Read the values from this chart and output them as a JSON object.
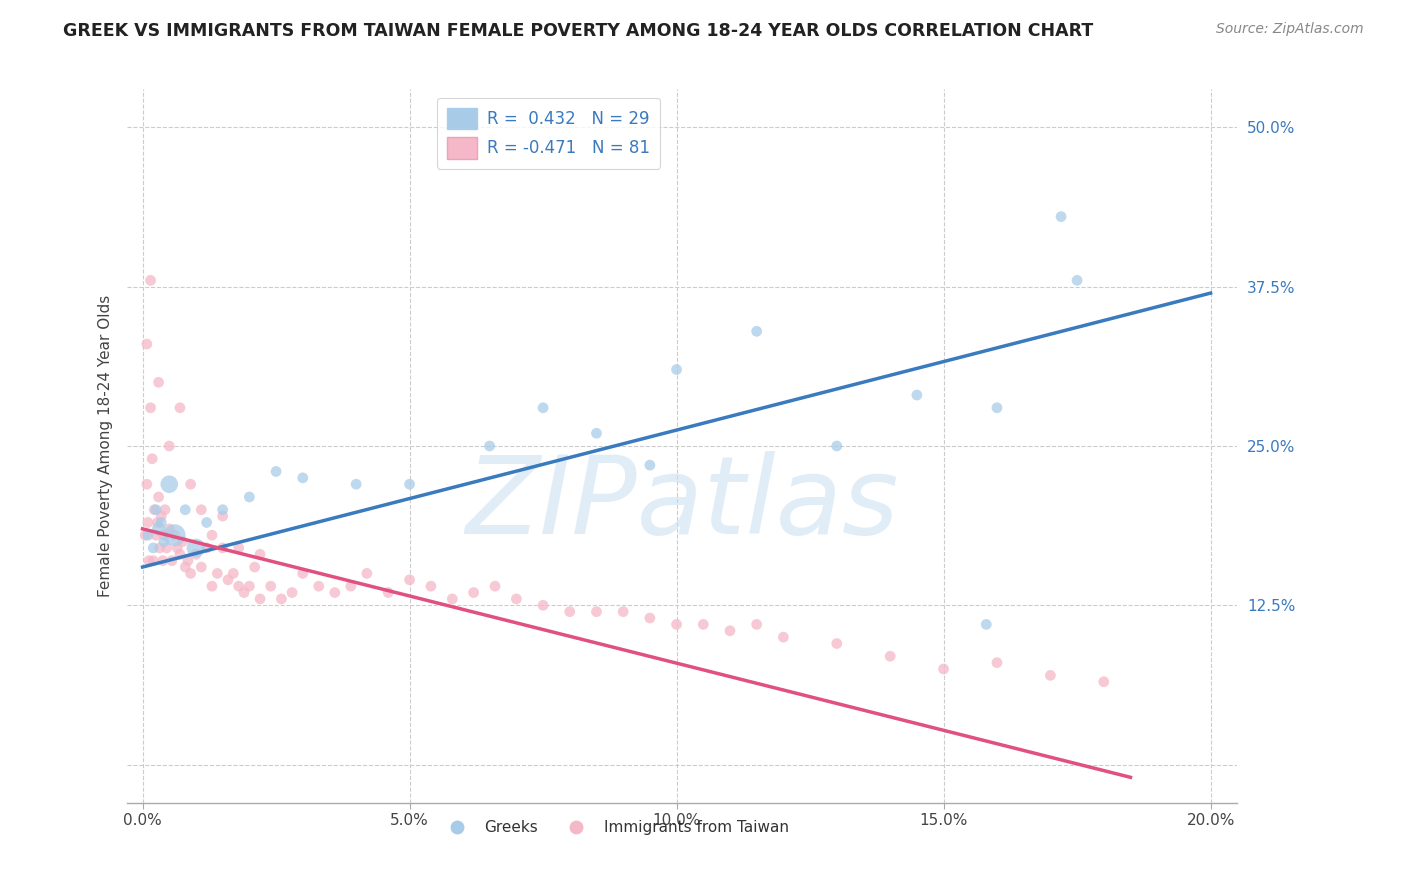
{
  "title": "GREEK VS IMMIGRANTS FROM TAIWAN FEMALE POVERTY AMONG 18-24 YEAR OLDS CORRELATION CHART",
  "source": "Source: ZipAtlas.com",
  "ylabel": "Female Poverty Among 18-24 Year Olds",
  "xlim": [
    -0.3,
    20.5
  ],
  "ylim": [
    -3.0,
    53.0
  ],
  "xticks": [
    0.0,
    5.0,
    10.0,
    15.0,
    20.0
  ],
  "xtick_labels": [
    "0.0%",
    "5.0%",
    "10.0%",
    "15.0%",
    "20.0%"
  ],
  "ytick_positions": [
    0.0,
    12.5,
    25.0,
    37.5,
    50.0
  ],
  "ytick_labels": [
    "",
    "12.5%",
    "25.0%",
    "37.5%",
    "50.0%"
  ],
  "legend_line1": "R =  0.432   N = 29",
  "legend_line2": "R = -0.471   N = 81",
  "blue_color": "#a8cce8",
  "pink_color": "#f4b8c8",
  "blue_line_color": "#3a7abf",
  "pink_line_color": "#e05080",
  "watermark_text": "ZIPatlas",
  "background_color": "#ffffff",
  "greek_x": [
    0.1,
    0.2,
    0.25,
    0.3,
    0.35,
    0.4,
    0.5,
    0.6,
    0.8,
    1.0,
    1.2,
    1.5,
    2.0,
    2.5,
    3.0,
    4.0,
    5.0,
    6.5,
    7.5,
    8.5,
    10.0,
    11.5,
    13.0,
    14.5,
    16.0,
    17.5,
    17.2,
    15.8,
    9.5
  ],
  "greek_y": [
    18.0,
    17.0,
    20.0,
    18.5,
    19.0,
    17.5,
    22.0,
    18.0,
    20.0,
    17.0,
    19.0,
    20.0,
    21.0,
    23.0,
    22.5,
    22.0,
    22.0,
    25.0,
    28.0,
    26.0,
    31.0,
    34.0,
    25.0,
    29.0,
    28.0,
    38.0,
    43.0,
    11.0,
    23.5
  ],
  "greek_sizes": [
    60,
    60,
    60,
    90,
    60,
    60,
    160,
    250,
    60,
    180,
    60,
    60,
    60,
    60,
    60,
    60,
    60,
    60,
    60,
    60,
    60,
    60,
    60,
    60,
    60,
    60,
    60,
    60,
    60
  ],
  "taiwan_x": [
    0.05,
    0.08,
    0.1,
    0.12,
    0.15,
    0.18,
    0.2,
    0.22,
    0.25,
    0.28,
    0.3,
    0.32,
    0.35,
    0.38,
    0.4,
    0.42,
    0.45,
    0.5,
    0.55,
    0.6,
    0.65,
    0.7,
    0.75,
    0.8,
    0.85,
    0.9,
    1.0,
    1.1,
    1.2,
    1.3,
    1.4,
    1.5,
    1.6,
    1.7,
    1.8,
    1.9,
    2.0,
    2.1,
    2.2,
    2.4,
    2.6,
    2.8,
    3.0,
    3.3,
    3.6,
    3.9,
    4.2,
    4.6,
    5.0,
    5.4,
    5.8,
    6.2,
    6.6,
    7.0,
    7.5,
    8.0,
    8.5,
    9.0,
    9.5,
    10.0,
    10.5,
    11.0,
    11.5,
    12.0,
    13.0,
    14.0,
    15.0,
    16.0,
    17.0,
    18.0,
    0.08,
    0.15,
    0.3,
    0.5,
    0.7,
    0.9,
    1.1,
    1.3,
    1.5,
    1.8,
    2.2
  ],
  "taiwan_y": [
    18.0,
    22.0,
    19.0,
    16.0,
    28.0,
    24.0,
    16.0,
    20.0,
    18.0,
    19.0,
    21.0,
    17.0,
    19.5,
    16.0,
    18.0,
    20.0,
    17.0,
    18.5,
    16.0,
    18.0,
    17.0,
    16.5,
    17.5,
    15.5,
    16.0,
    15.0,
    16.5,
    15.5,
    17.0,
    14.0,
    15.0,
    17.0,
    14.5,
    15.0,
    14.0,
    13.5,
    14.0,
    15.5,
    13.0,
    14.0,
    13.0,
    13.5,
    15.0,
    14.0,
    13.5,
    14.0,
    15.0,
    13.5,
    14.5,
    14.0,
    13.0,
    13.5,
    14.0,
    13.0,
    12.5,
    12.0,
    12.0,
    12.0,
    11.5,
    11.0,
    11.0,
    10.5,
    11.0,
    10.0,
    9.5,
    8.5,
    7.5,
    8.0,
    7.0,
    6.5,
    33.0,
    38.0,
    30.0,
    25.0,
    28.0,
    22.0,
    20.0,
    18.0,
    19.5,
    17.0,
    16.5
  ],
  "taiwan_sizes": [
    60,
    60,
    60,
    60,
    60,
    60,
    60,
    60,
    60,
    60,
    60,
    60,
    60,
    60,
    60,
    60,
    60,
    60,
    60,
    60,
    60,
    60,
    60,
    60,
    60,
    60,
    60,
    60,
    60,
    60,
    60,
    60,
    60,
    60,
    60,
    60,
    60,
    60,
    60,
    60,
    60,
    60,
    60,
    60,
    60,
    60,
    60,
    60,
    60,
    60,
    60,
    60,
    60,
    60,
    60,
    60,
    60,
    60,
    60,
    60,
    60,
    60,
    60,
    60,
    60,
    60,
    60,
    60,
    60,
    60,
    60,
    60,
    60,
    60,
    60,
    60,
    60,
    60,
    60,
    60,
    60
  ],
  "blue_line_x0": 0.0,
  "blue_line_y0": 15.5,
  "blue_line_x1": 20.0,
  "blue_line_y1": 37.0,
  "pink_line_x0": 0.0,
  "pink_line_y0": 18.5,
  "pink_line_x1": 18.5,
  "pink_line_y1": -1.0
}
